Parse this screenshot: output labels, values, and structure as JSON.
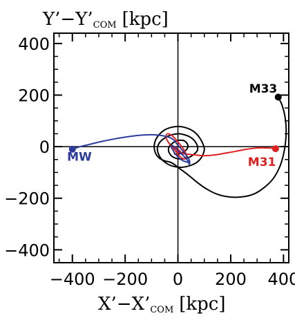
{
  "chart_data": {
    "type": "line",
    "xlabel_main": "X’−X’",
    "xlabel_sub": "COM",
    "xlabel_unit": "[kpc]",
    "ylabel_main": "Y’−Y’",
    "ylabel_sub": "COM",
    "ylabel_unit": "[kpc]",
    "xlim": [
      -470,
      420
    ],
    "ylim": [
      -450,
      440
    ],
    "xticks": [
      {
        "value": -400,
        "label": "−400"
      },
      {
        "value": -200,
        "label": "−200"
      },
      {
        "value": 0,
        "label": "0"
      },
      {
        "value": 200,
        "label": "200"
      },
      {
        "value": 400,
        "label": "400"
      }
    ],
    "yticks": [
      {
        "value": 400,
        "label": "400"
      },
      {
        "value": 200,
        "label": "200"
      },
      {
        "value": 0,
        "label": "0"
      },
      {
        "value": -200,
        "label": "−200"
      },
      {
        "value": -400,
        "label": "−400"
      }
    ],
    "grid": false,
    "zero_lines": true,
    "series": [
      {
        "name": "MW",
        "color": "#2b3a9c",
        "marker": [
          -400,
          -10
        ],
        "x": [
          -400,
          -370,
          -330,
          -280,
          -230,
          -180,
          -130,
          -90,
          -55,
          -30,
          -15,
          -5,
          5,
          15,
          25,
          35,
          42,
          45,
          38,
          25,
          10,
          -5,
          -15,
          -22,
          -25,
          -20,
          -10,
          5,
          20,
          35,
          45,
          40
        ],
        "y": [
          -10,
          0,
          10,
          22,
          32,
          40,
          45,
          46,
          42,
          35,
          25,
          12,
          0,
          -12,
          -25,
          -38,
          -50,
          -60,
          -55,
          -40,
          -25,
          -10,
          0,
          5,
          0,
          -12,
          -28,
          -45,
          -55,
          -60,
          -65,
          -70
        ]
      },
      {
        "name": "M31",
        "color": "#e02020",
        "marker": [
          370,
          -8
        ],
        "x": [
          370,
          340,
          300,
          260,
          220,
          180,
          140,
          100,
          70,
          45,
          25,
          10,
          -5,
          -20,
          -35,
          -45,
          -40,
          -25,
          -10,
          5,
          18,
          28,
          32,
          25,
          12,
          0,
          -10,
          -15,
          -10,
          0,
          12,
          20
        ],
        "y": [
          -8,
          -5,
          -5,
          -10,
          -18,
          -25,
          -32,
          -35,
          -33,
          -30,
          -28,
          -25,
          -18,
          -5,
          15,
          35,
          50,
          45,
          30,
          12,
          -5,
          -22,
          -38,
          -48,
          -42,
          -30,
          -15,
          -5,
          -2,
          -10,
          -22,
          -30
        ]
      },
      {
        "name": "M33",
        "color": "#000000",
        "marker": [
          380,
          192
        ],
        "x": [
          380,
          395,
          405,
          410,
          408,
          400,
          385,
          360,
          325,
          285,
          240,
          195,
          150,
          110,
          75,
          45,
          20,
          0,
          -15,
          -30,
          -50,
          -70,
          -85,
          -90,
          -85,
          -70,
          -50,
          -25,
          0,
          25,
          50,
          70,
          85,
          95,
          100,
          95,
          85,
          70,
          50,
          30,
          10,
          -10,
          -30,
          -50,
          -65,
          -75,
          -78,
          -70,
          -55,
          -35,
          -15,
          5,
          25,
          45,
          60,
          70,
          75,
          72,
          60,
          45,
          28,
          10,
          -8,
          -22,
          -32,
          -36,
          -32,
          -20,
          -5,
          10,
          25,
          35,
          38,
          32,
          20,
          5,
          -8,
          -15
        ],
        "y": [
          192,
          160,
          120,
          70,
          20,
          -30,
          -80,
          -125,
          -160,
          -185,
          -195,
          -195,
          -185,
          -165,
          -140,
          -115,
          -95,
          -80,
          -68,
          -60,
          -55,
          -45,
          -25,
          0,
          25,
          48,
          65,
          75,
          78,
          75,
          65,
          50,
          30,
          10,
          -10,
          -30,
          -48,
          -62,
          -72,
          -78,
          -80,
          -78,
          -72,
          -60,
          -45,
          -25,
          -5,
          15,
          30,
          42,
          48,
          50,
          46,
          38,
          26,
          12,
          -3,
          -18,
          -30,
          -40,
          -46,
          -48,
          -45,
          -38,
          -26,
          -12,
          2,
          14,
          22,
          25,
          22,
          12,
          0,
          -12,
          -22,
          -28,
          -30,
          -26
        ]
      }
    ],
    "annotations": [
      {
        "text": "MW",
        "color": "#2b3a9c",
        "x": -420,
        "y": -55
      },
      {
        "text": "M31",
        "color": "#e02020",
        "x": 265,
        "y": -75
      },
      {
        "text": "M33",
        "color": "#000000",
        "x": 270,
        "y": 210
      }
    ]
  }
}
